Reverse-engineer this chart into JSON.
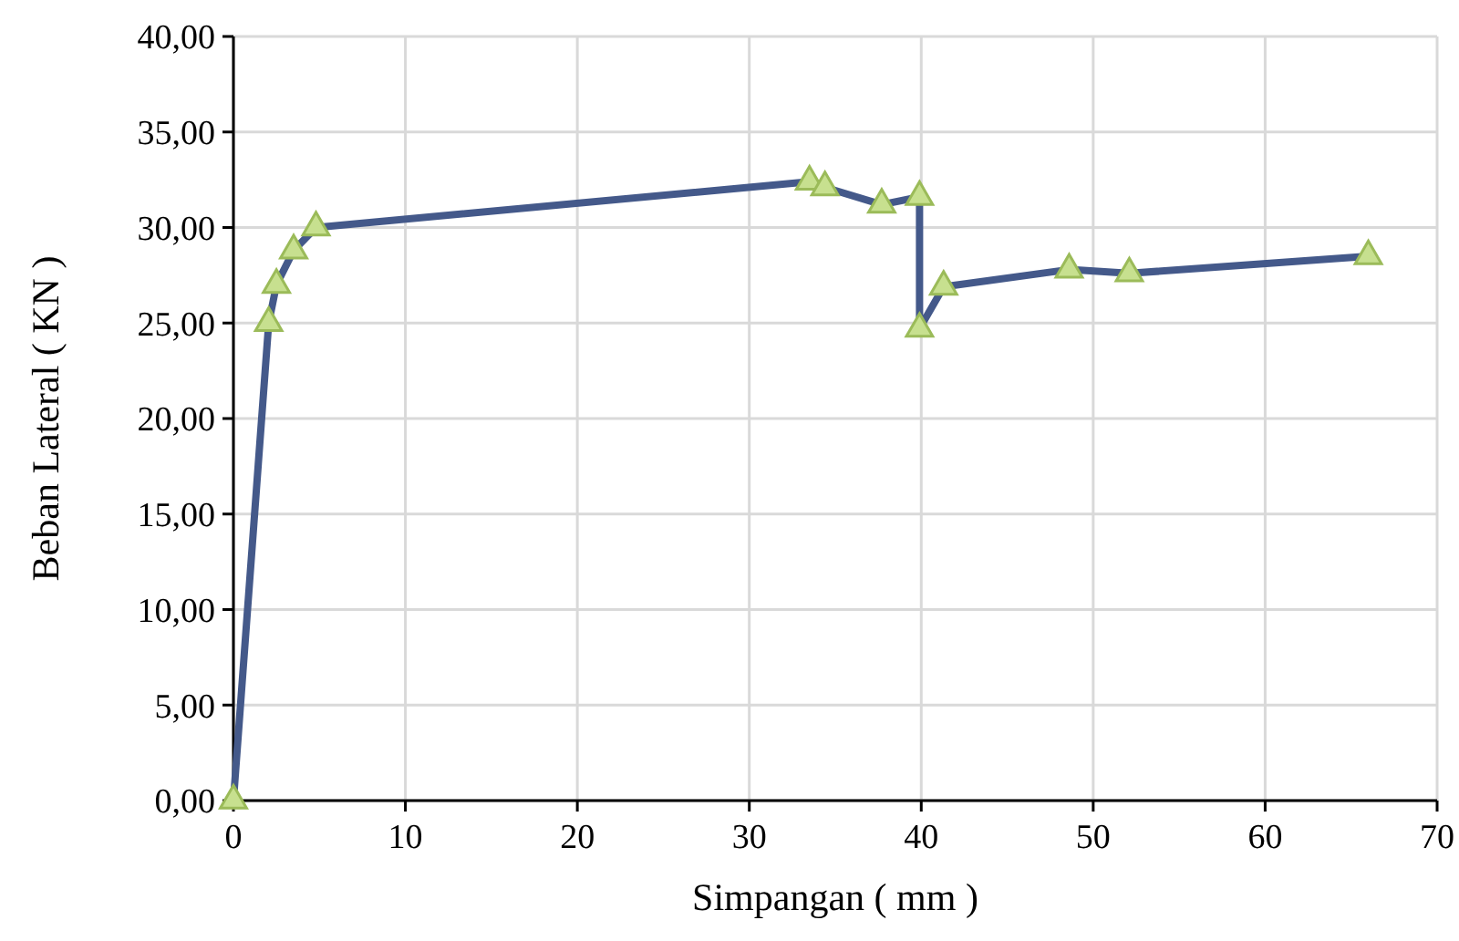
{
  "chart_data": {
    "type": "line",
    "xlabel": "Simpangan ( mm )",
    "ylabel": "Beban Lateral ( KN )",
    "x": [
      0,
      2.05,
      2.5,
      3.5,
      4.8,
      33.5,
      34.4,
      37.7,
      39.9,
      39.9,
      41.3,
      48.6,
      52.1,
      66.0
    ],
    "series": [
      {
        "color": "#44598a",
        "values": [
          0,
          25,
          27,
          28.8,
          30,
          32.4,
          32.1,
          31.2,
          31.6,
          24.7,
          26.9,
          27.8,
          27.6,
          28.5
        ]
      }
    ],
    "xlim": [
      0,
      70
    ],
    "xticks": [
      0,
      10,
      20,
      30,
      40,
      50,
      60,
      70
    ],
    "ylim": [
      0,
      40
    ],
    "yticks": [
      {
        "value": 0,
        "label": "0,00"
      },
      {
        "value": 5,
        "label": "5,00"
      },
      {
        "value": 10,
        "label": "10,00"
      },
      {
        "value": 15,
        "label": "15,00"
      },
      {
        "value": 20,
        "label": "20,00"
      },
      {
        "value": 25,
        "label": "25,00"
      },
      {
        "value": 30,
        "label": "30,00"
      },
      {
        "value": 35,
        "label": "35,00"
      },
      {
        "value": 40,
        "label": "40,00"
      }
    ],
    "grid": true,
    "marker": "triangle",
    "line_style": "solid"
  }
}
